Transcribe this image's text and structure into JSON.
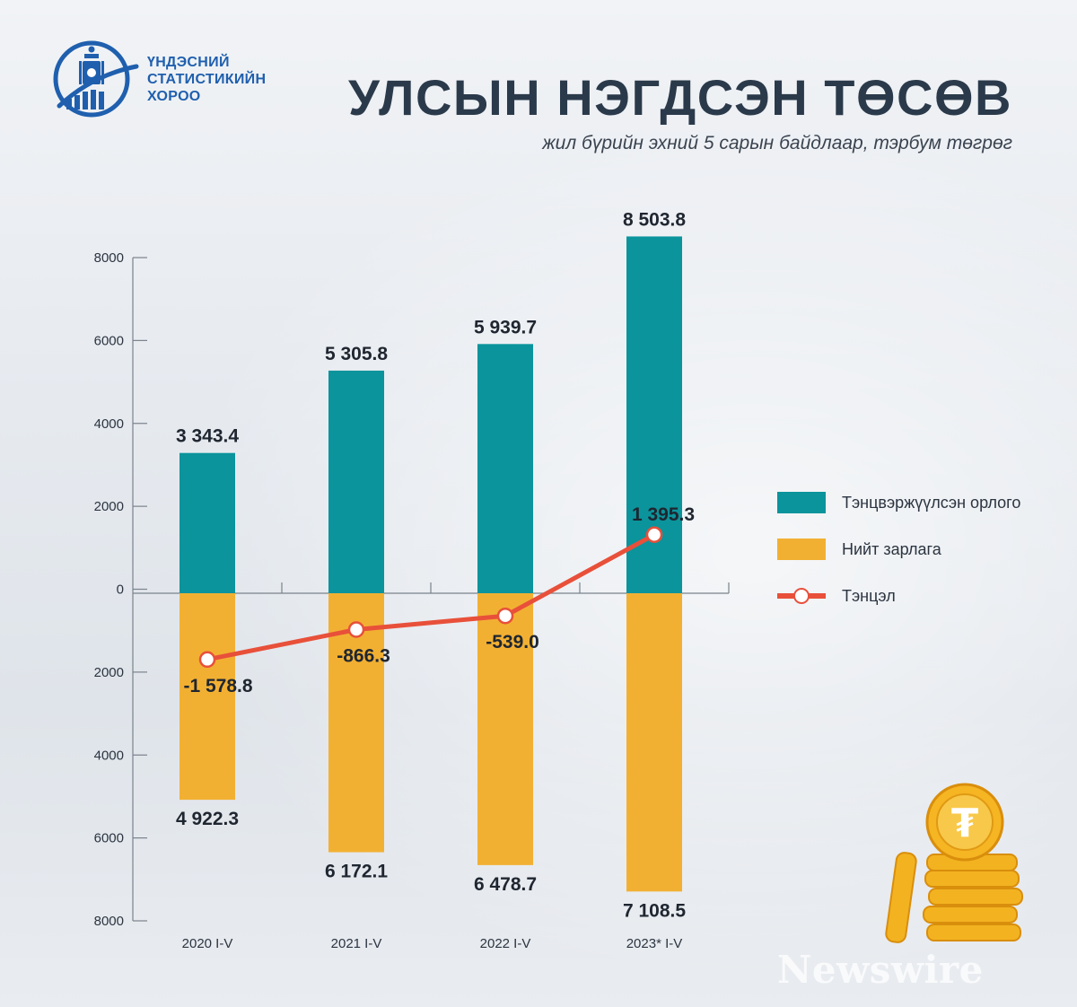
{
  "org": {
    "line1": "ҮНДЭСНИЙ",
    "line2": "СТАТИСТИКИЙН",
    "line3": "ХОРОО"
  },
  "header": {
    "title": "УЛСЫН НЭГДСЭН ТӨСӨВ",
    "subtitle": "жил бүрийн эхний 5 сарын байдлаар, тэрбум төгрөг"
  },
  "colors": {
    "revenue": "#0b949c",
    "expense": "#f2b033",
    "balance": "#e8503a",
    "title": "#2b3a4b",
    "logo": "#1f5fae"
  },
  "chart_data": {
    "type": "bar",
    "categories": [
      "2020 I-V",
      "2021 I-V",
      "2022 I-V",
      "2023* I-V"
    ],
    "y_axis_ticks": [
      "8000",
      "6000",
      "4000",
      "2000",
      "0",
      "2000",
      "4000",
      "6000",
      "8000"
    ],
    "ylim": [
      -8000,
      8000
    ],
    "legend_position": "right",
    "series": [
      {
        "name": "Тэнцвэржүүлсэн орлого",
        "type": "bar",
        "values": [
          3343.4,
          5305.8,
          5939.7,
          8503.8
        ],
        "labels": [
          "3 343.4",
          "5 305.8",
          "5 939.7",
          "8 503.8"
        ]
      },
      {
        "name": "Нийт зарлага",
        "type": "bar",
        "values": [
          -4922.3,
          -6172.1,
          -6478.7,
          -7108.5
        ],
        "labels": [
          "4 922.3",
          "6 172.1",
          "6 478.7",
          "7 108.5"
        ]
      },
      {
        "name": "Тэнцэл",
        "type": "line",
        "values": [
          -1578.8,
          -866.3,
          -539.0,
          1395.3
        ],
        "labels": [
          "-1 578.8",
          "-866.3",
          "-539.0",
          "1 395.3"
        ]
      }
    ]
  },
  "legend": {
    "revenue": "Тэнцвэржүүлсэн орлого",
    "expense": "Нийт зарлага",
    "balance": "Тэнцэл"
  },
  "watermark": "Newswire"
}
